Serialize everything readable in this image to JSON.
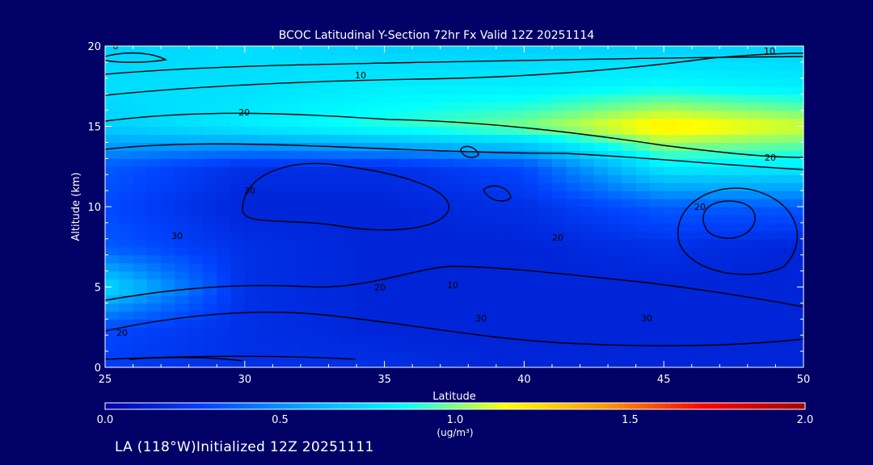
{
  "chart_data": {
    "type": "heatmap",
    "title": "BCOC Latitudinal Y-Section 72hr  Fx Valid 12Z 20251114",
    "xlabel": "Latitude",
    "ylabel": "Altitude (km)",
    "xlim": [
      25,
      50
    ],
    "ylim": [
      0,
      20
    ],
    "x_ticks": [
      "25",
      "30",
      "35",
      "40",
      "45",
      "50"
    ],
    "y_ticks": [
      "0",
      "5",
      "10",
      "15",
      "20"
    ],
    "colorbar": {
      "label": "(ug/m³)",
      "range": [
        0.0,
        2.0
      ],
      "ticks": [
        "0.0",
        "0.5",
        "1.0",
        "1.5",
        "2.0"
      ],
      "colors": [
        "#0000aa",
        "#0044ff",
        "#00aaff",
        "#00ffff",
        "#ffff00",
        "#ff9900",
        "#ff0000",
        "#aa0000"
      ]
    },
    "field_grid": {
      "lat": [
        25,
        30,
        35,
        40,
        45,
        50
      ],
      "alt": [
        0,
        2.5,
        5,
        7.5,
        10,
        12.5,
        15,
        17.5,
        20
      ],
      "values": [
        [
          0.25,
          0.2,
          0.2,
          0.15,
          0.15,
          0.15
        ],
        [
          0.3,
          0.2,
          0.15,
          0.15,
          0.15,
          0.15
        ],
        [
          0.75,
          0.2,
          0.15,
          0.15,
          0.15,
          0.15
        ],
        [
          0.35,
          0.2,
          0.15,
          0.15,
          0.2,
          0.15
        ],
        [
          0.3,
          0.15,
          0.15,
          0.2,
          0.35,
          0.35
        ],
        [
          0.35,
          0.2,
          0.2,
          0.3,
          0.8,
          0.8
        ],
        [
          0.7,
          0.8,
          0.9,
          1.0,
          1.2,
          1.1
        ],
        [
          0.75,
          0.75,
          0.8,
          0.8,
          0.85,
          0.8
        ],
        [
          0.7,
          0.75,
          0.7,
          0.7,
          0.7,
          0.7
        ]
      ]
    },
    "contour_labels": [
      "0",
      "10",
      "20",
      "20",
      "30",
      "20",
      "30",
      "10",
      "20",
      "30",
      "20",
      "30",
      "10",
      "20"
    ]
  },
  "footer": "LA (118°W)Initialized 12Z 20251111"
}
